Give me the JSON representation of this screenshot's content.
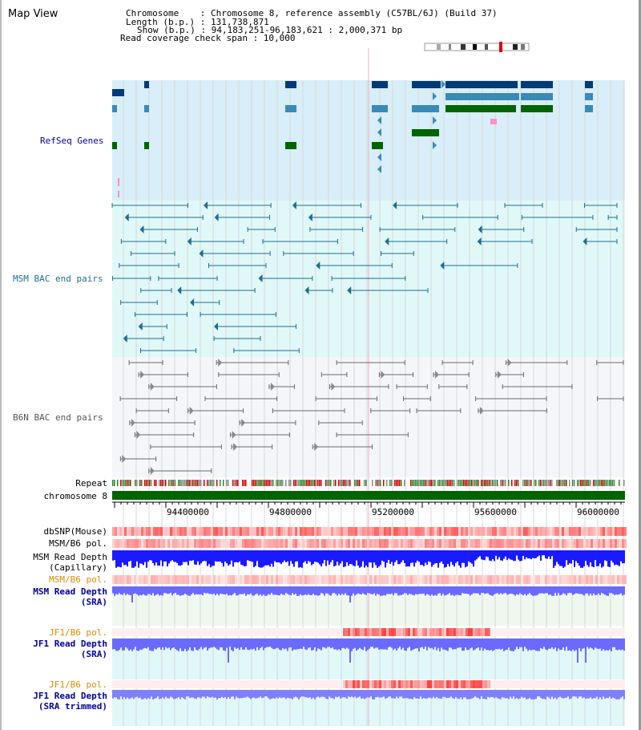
{
  "title": "Map View",
  "header": {
    "chromosome_line": "Chromosome    : Chromosome 8, reference assembly (C57BL/6J) (Build 37)",
    "length_line": "Length (b.p.) : 131,738,871",
    "show_line": "Show (b.p.) : 94,183,251-96,183,621 : 2,000,371 bp",
    "coverage_line": "Read coverage check span : 10,000"
  },
  "tracks": {
    "refseq": "RefSeq Genes",
    "msm_bac": "MSM BAC end pairs",
    "b6n_bac": "B6N BAC end pairs",
    "repeat": "Repeat",
    "chromosome": "chromosome 8",
    "dbsnp": "dbSNP(Mouse)",
    "msm_b6_pol_1": "MSM/B6 pol.",
    "msm_read_depth_cap_1": "MSM Read Depth",
    "msm_read_depth_cap_2": "(Capillary)",
    "msm_b6_pol_2": "MSM/B6 pol.",
    "msm_read_depth_sra_1": "MSM Read Depth",
    "msm_read_depth_sra_2": "(SRA)",
    "jf1_b6_pol_1": "JF1/B6 pol.",
    "jf1_read_depth_sra_1": "JF1 Read Depth",
    "jf1_read_depth_sra_2": "(SRA)",
    "jf1_b6_pol_2": "JF1/B6 pol.",
    "jf1_read_depth_trim_1": "JF1 Read Depth",
    "jf1_read_depth_trim_2": "(SRA trimmed)"
  },
  "axis": {
    "ticks": [
      "94400000",
      "94800000",
      "95200000",
      "95600000",
      "96000000"
    ]
  },
  "colors": {
    "refseq_bg": "#d8eef8",
    "msm_bg": "#e0f8f8",
    "b6n_bg": "#f4f6fa",
    "gene_dark": "#003a78",
    "gene_mid": "#3a8ab8",
    "gene_green": "#006400",
    "msm_pair": "#1e6e90",
    "b6n_pair": "#6a6a6a",
    "chrom": "#006400",
    "depth_blue": "#1a1aff",
    "depth_light": "#6a6aff",
    "pol_red": "#ff4040",
    "orange_label": "#e08a00",
    "blue_label": "#0000a0"
  }
}
